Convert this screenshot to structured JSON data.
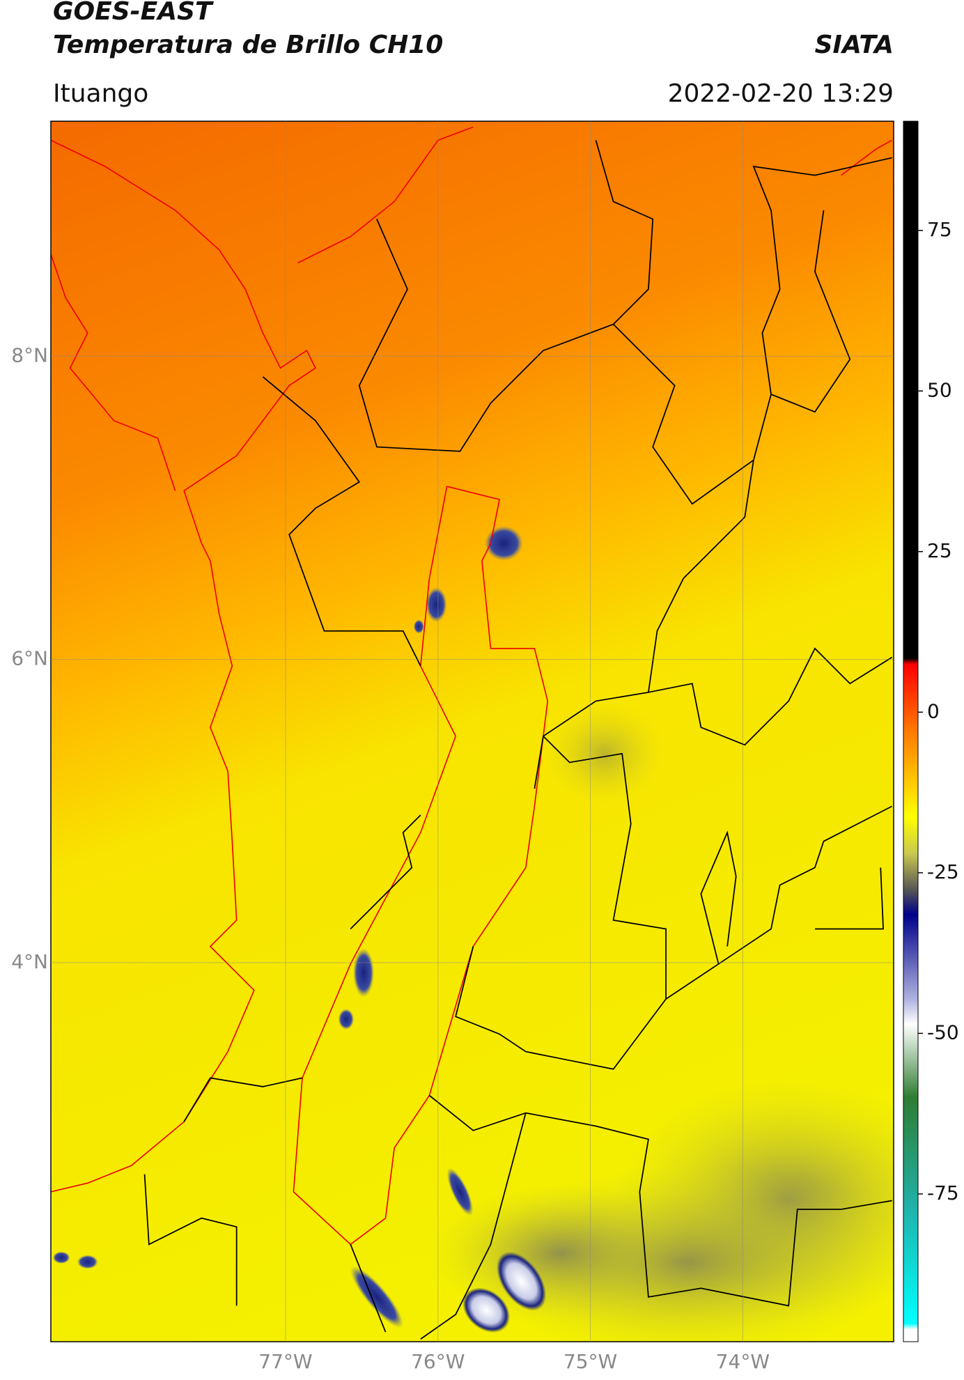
{
  "header": {
    "title_line1": "GOES-EAST",
    "title_line2": "Temperatura de Brillo CH10",
    "source": "SIATA",
    "location": "Ituango",
    "timestamp": "2022-02-20 13:29"
  },
  "map": {
    "xlim": [
      -78.54,
      -73.01
    ],
    "ylim": [
      1.5,
      9.55
    ],
    "xticks": [
      {
        "value": -77,
        "label": "77°W"
      },
      {
        "value": -76,
        "label": "76°W"
      },
      {
        "value": -75,
        "label": "75°W"
      },
      {
        "value": -74,
        "label": "74°W"
      }
    ],
    "yticks": [
      {
        "value": 8,
        "label": "8°N"
      },
      {
        "value": 6,
        "label": "6°N"
      },
      {
        "value": 4,
        "label": "4°N"
      }
    ],
    "grid": true
  },
  "colorbar": {
    "clim": [
      -98,
      92
    ],
    "ticks": [
      75,
      50,
      25,
      0,
      -25,
      -50,
      -75
    ]
  }
}
